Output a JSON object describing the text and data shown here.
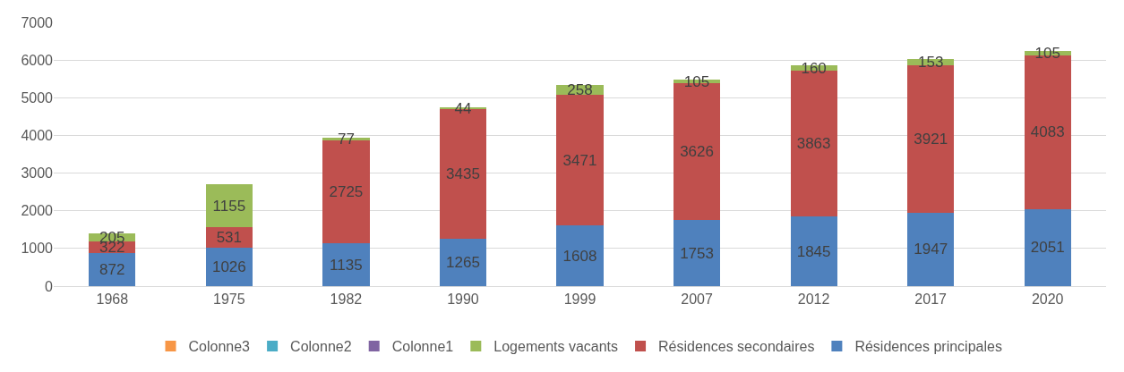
{
  "chart_data": {
    "type": "bar",
    "stacked": true,
    "categories": [
      "1968",
      "1975",
      "1982",
      "1990",
      "1999",
      "2007",
      "2012",
      "2017",
      "2020"
    ],
    "series": [
      {
        "name": "Résidences principales",
        "color": "#4f81bd",
        "values": [
          872,
          1026,
          1135,
          1265,
          1608,
          1753,
          1845,
          1947,
          2051
        ]
      },
      {
        "name": "Résidences secondaires",
        "color": "#c0504d",
        "values": [
          322,
          531,
          2725,
          3435,
          3471,
          3626,
          3863,
          3921,
          4083
        ]
      },
      {
        "name": "Logements vacants",
        "color": "#9bbb59",
        "values": [
          205,
          1155,
          77,
          44,
          258,
          105,
          160,
          153,
          105
        ]
      },
      {
        "name": "Colonne1",
        "color": "#8064a2",
        "values": [
          null,
          null,
          null,
          null,
          null,
          null,
          null,
          null,
          null
        ]
      },
      {
        "name": "Colonne2",
        "color": "#4bacc6",
        "values": [
          null,
          null,
          null,
          null,
          null,
          null,
          null,
          null,
          null
        ]
      },
      {
        "name": "Colonne3",
        "color": "#f79646",
        "values": [
          null,
          null,
          null,
          null,
          null,
          null,
          null,
          null,
          null
        ]
      }
    ],
    "ylim": [
      0,
      7000
    ],
    "yticks": [
      0,
      1000,
      2000,
      3000,
      4000,
      5000,
      6000,
      7000
    ],
    "grid": "y",
    "legend": "bottom",
    "data_labels": true
  }
}
